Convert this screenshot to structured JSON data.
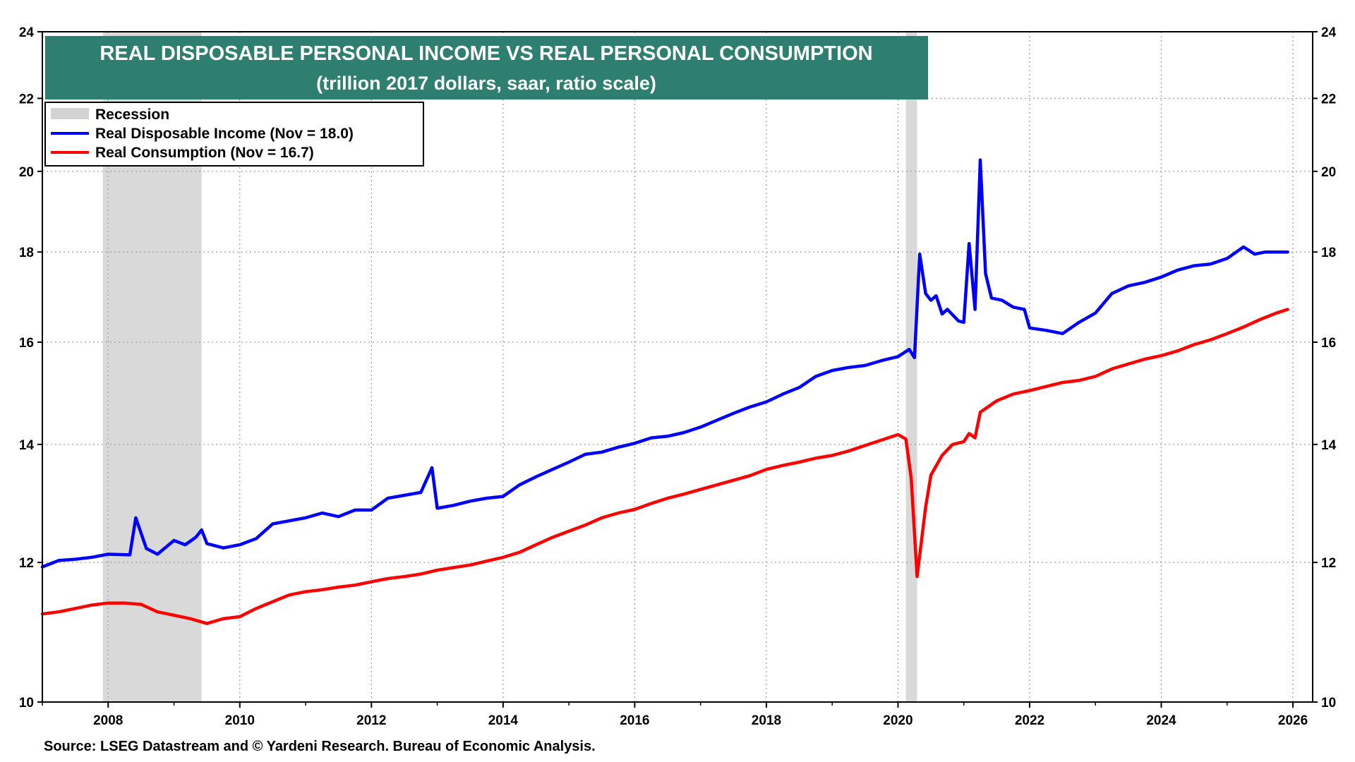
{
  "chart_data": {
    "type": "line",
    "title": "REAL DISPOSABLE PERSONAL INCOME VS REAL PERSONAL CONSUMPTION",
    "subtitle": "(trillion 2017 dollars, saar, ratio scale)",
    "y_scale": "log",
    "ylim": [
      10,
      24
    ],
    "y_ticks": [
      10,
      12,
      14,
      16,
      18,
      20,
      22,
      24
    ],
    "y_tick_labels": [
      "10",
      "12",
      "14",
      "16",
      "18",
      "20",
      "22",
      "24"
    ],
    "xlim": [
      2007.0,
      2026.3
    ],
    "x_ticks": [
      2008,
      2010,
      2012,
      2014,
      2016,
      2018,
      2020,
      2022,
      2024,
      2026
    ],
    "x_tick_labels": [
      "2008",
      "2010",
      "2012",
      "2014",
      "2016",
      "2018",
      "2020",
      "2022",
      "2024",
      "2026"
    ],
    "recessions": [
      {
        "start": 2007.92,
        "end": 2009.42
      },
      {
        "start": 2020.12,
        "end": 2020.29
      }
    ],
    "legend": {
      "recession_label": "Recession",
      "placement": "top-left"
    },
    "series": [
      {
        "name": "Real Disposable Income (Nov = 18.0)",
        "color": "#0000ff",
        "points": [
          [
            2007.0,
            11.93
          ],
          [
            2007.25,
            12.03
          ],
          [
            2007.5,
            12.05
          ],
          [
            2007.75,
            12.08
          ],
          [
            2008.0,
            12.13
          ],
          [
            2008.33,
            12.12
          ],
          [
            2008.42,
            12.72
          ],
          [
            2008.58,
            12.22
          ],
          [
            2008.75,
            12.13
          ],
          [
            2009.0,
            12.35
          ],
          [
            2009.17,
            12.28
          ],
          [
            2009.33,
            12.4
          ],
          [
            2009.42,
            12.52
          ],
          [
            2009.5,
            12.3
          ],
          [
            2009.75,
            12.23
          ],
          [
            2010.0,
            12.28
          ],
          [
            2010.25,
            12.38
          ],
          [
            2010.5,
            12.62
          ],
          [
            2010.75,
            12.67
          ],
          [
            2011.0,
            12.72
          ],
          [
            2011.25,
            12.8
          ],
          [
            2011.5,
            12.74
          ],
          [
            2011.75,
            12.85
          ],
          [
            2012.0,
            12.85
          ],
          [
            2012.25,
            13.05
          ],
          [
            2012.5,
            13.1
          ],
          [
            2012.75,
            13.15
          ],
          [
            2012.92,
            13.58
          ],
          [
            2013.0,
            12.88
          ],
          [
            2013.25,
            12.93
          ],
          [
            2013.5,
            13.0
          ],
          [
            2013.75,
            13.05
          ],
          [
            2014.0,
            13.08
          ],
          [
            2014.25,
            13.28
          ],
          [
            2014.5,
            13.42
          ],
          [
            2014.75,
            13.55
          ],
          [
            2015.0,
            13.68
          ],
          [
            2015.25,
            13.82
          ],
          [
            2015.5,
            13.86
          ],
          [
            2015.75,
            13.95
          ],
          [
            2016.0,
            14.02
          ],
          [
            2016.25,
            14.12
          ],
          [
            2016.5,
            14.15
          ],
          [
            2016.75,
            14.22
          ],
          [
            2017.0,
            14.32
          ],
          [
            2017.25,
            14.45
          ],
          [
            2017.5,
            14.58
          ],
          [
            2017.75,
            14.7
          ],
          [
            2018.0,
            14.8
          ],
          [
            2018.25,
            14.95
          ],
          [
            2018.5,
            15.08
          ],
          [
            2018.75,
            15.3
          ],
          [
            2019.0,
            15.42
          ],
          [
            2019.25,
            15.48
          ],
          [
            2019.5,
            15.52
          ],
          [
            2019.75,
            15.62
          ],
          [
            2020.0,
            15.7
          ],
          [
            2020.17,
            15.85
          ],
          [
            2020.25,
            15.68
          ],
          [
            2020.33,
            17.95
          ],
          [
            2020.42,
            17.05
          ],
          [
            2020.5,
            16.9
          ],
          [
            2020.58,
            17.0
          ],
          [
            2020.67,
            16.6
          ],
          [
            2020.75,
            16.7
          ],
          [
            2020.92,
            16.45
          ],
          [
            2021.0,
            16.42
          ],
          [
            2021.08,
            18.2
          ],
          [
            2021.17,
            16.7
          ],
          [
            2021.25,
            20.3
          ],
          [
            2021.33,
            17.5
          ],
          [
            2021.42,
            16.95
          ],
          [
            2021.58,
            16.9
          ],
          [
            2021.75,
            16.75
          ],
          [
            2021.92,
            16.7
          ],
          [
            2022.0,
            16.3
          ],
          [
            2022.25,
            16.25
          ],
          [
            2022.5,
            16.18
          ],
          [
            2022.75,
            16.42
          ],
          [
            2023.0,
            16.62
          ],
          [
            2023.25,
            17.05
          ],
          [
            2023.5,
            17.22
          ],
          [
            2023.75,
            17.3
          ],
          [
            2024.0,
            17.42
          ],
          [
            2024.25,
            17.58
          ],
          [
            2024.5,
            17.68
          ],
          [
            2024.75,
            17.72
          ],
          [
            2025.0,
            17.85
          ],
          [
            2025.25,
            18.12
          ],
          [
            2025.42,
            17.95
          ],
          [
            2025.58,
            18.0
          ],
          [
            2025.75,
            18.0
          ],
          [
            2025.92,
            18.0
          ]
        ]
      },
      {
        "name": "Real Consumption (Nov = 16.7)",
        "color": "#ff0000",
        "points": [
          [
            2007.0,
            11.22
          ],
          [
            2007.25,
            11.25
          ],
          [
            2007.5,
            11.3
          ],
          [
            2007.75,
            11.35
          ],
          [
            2008.0,
            11.38
          ],
          [
            2008.25,
            11.38
          ],
          [
            2008.5,
            11.36
          ],
          [
            2008.75,
            11.25
          ],
          [
            2009.0,
            11.2
          ],
          [
            2009.25,
            11.15
          ],
          [
            2009.5,
            11.08
          ],
          [
            2009.75,
            11.15
          ],
          [
            2010.0,
            11.18
          ],
          [
            2010.25,
            11.3
          ],
          [
            2010.5,
            11.4
          ],
          [
            2010.75,
            11.5
          ],
          [
            2011.0,
            11.55
          ],
          [
            2011.25,
            11.58
          ],
          [
            2011.5,
            11.62
          ],
          [
            2011.75,
            11.65
          ],
          [
            2012.0,
            11.7
          ],
          [
            2012.25,
            11.75
          ],
          [
            2012.5,
            11.78
          ],
          [
            2012.75,
            11.82
          ],
          [
            2013.0,
            11.88
          ],
          [
            2013.25,
            11.92
          ],
          [
            2013.5,
            11.96
          ],
          [
            2013.75,
            12.02
          ],
          [
            2014.0,
            12.08
          ],
          [
            2014.25,
            12.16
          ],
          [
            2014.5,
            12.28
          ],
          [
            2014.75,
            12.4
          ],
          [
            2015.0,
            12.5
          ],
          [
            2015.25,
            12.6
          ],
          [
            2015.5,
            12.72
          ],
          [
            2015.75,
            12.8
          ],
          [
            2016.0,
            12.86
          ],
          [
            2016.25,
            12.96
          ],
          [
            2016.5,
            13.05
          ],
          [
            2016.75,
            13.12
          ],
          [
            2017.0,
            13.2
          ],
          [
            2017.25,
            13.28
          ],
          [
            2017.5,
            13.36
          ],
          [
            2017.75,
            13.44
          ],
          [
            2018.0,
            13.55
          ],
          [
            2018.25,
            13.62
          ],
          [
            2018.5,
            13.68
          ],
          [
            2018.75,
            13.75
          ],
          [
            2019.0,
            13.8
          ],
          [
            2019.25,
            13.88
          ],
          [
            2019.5,
            13.98
          ],
          [
            2019.75,
            14.08
          ],
          [
            2020.0,
            14.18
          ],
          [
            2020.12,
            14.1
          ],
          [
            2020.2,
            13.4
          ],
          [
            2020.29,
            11.78
          ],
          [
            2020.42,
            12.9
          ],
          [
            2020.5,
            13.45
          ],
          [
            2020.67,
            13.8
          ],
          [
            2020.83,
            14.0
          ],
          [
            2021.0,
            14.05
          ],
          [
            2021.08,
            14.2
          ],
          [
            2021.17,
            14.12
          ],
          [
            2021.25,
            14.6
          ],
          [
            2021.5,
            14.82
          ],
          [
            2021.75,
            14.95
          ],
          [
            2022.0,
            15.02
          ],
          [
            2022.25,
            15.1
          ],
          [
            2022.5,
            15.18
          ],
          [
            2022.75,
            15.22
          ],
          [
            2023.0,
            15.3
          ],
          [
            2023.25,
            15.45
          ],
          [
            2023.5,
            15.55
          ],
          [
            2023.75,
            15.65
          ],
          [
            2024.0,
            15.72
          ],
          [
            2024.25,
            15.82
          ],
          [
            2024.5,
            15.95
          ],
          [
            2024.75,
            16.05
          ],
          [
            2025.0,
            16.18
          ],
          [
            2025.25,
            16.32
          ],
          [
            2025.5,
            16.48
          ],
          [
            2025.75,
            16.62
          ],
          [
            2025.92,
            16.7
          ]
        ]
      }
    ],
    "source": "Source: LSEG Datastream and © Yardeni Research. Bureau of Economic Analysis."
  }
}
